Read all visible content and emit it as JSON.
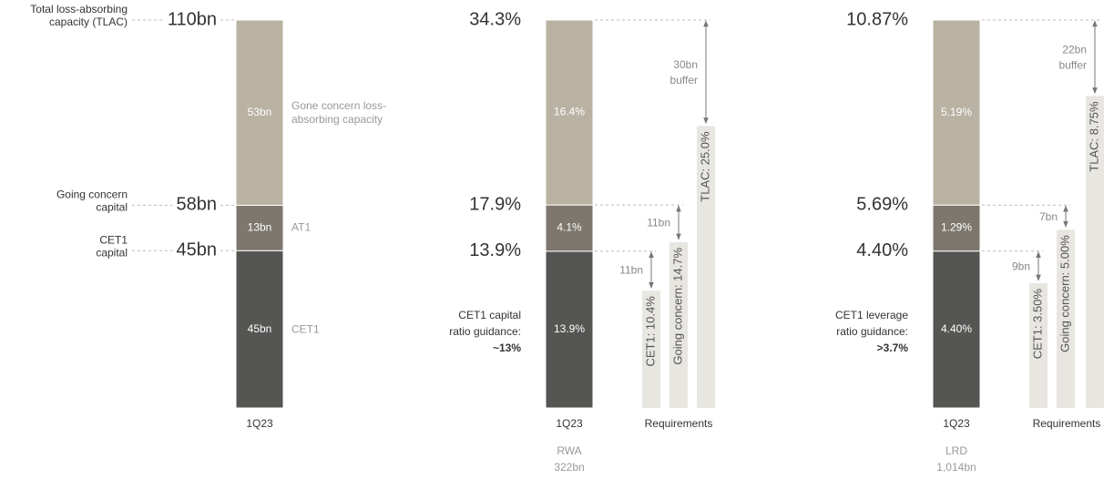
{
  "chart_data": [
    {
      "type": "stacked_bar",
      "categories": [
        "1Q23"
      ],
      "series": [
        {
          "name": "CET1",
          "color": "#555553",
          "values": [
            45
          ],
          "value_labels": [
            "45bn"
          ]
        },
        {
          "name": "AT1",
          "color": "#7d776d",
          "values": [
            13
          ],
          "value_labels": [
            "13bn"
          ]
        },
        {
          "name": "Gone concern loss-absorbing capacity",
          "color": "#b9b2a2",
          "values": [
            53
          ],
          "value_labels": [
            "53bn"
          ]
        }
      ],
      "levels": [
        {
          "text": "45bn",
          "label": [
            "CET1",
            "capital"
          ]
        },
        {
          "text": "58bn",
          "label": [
            "Going concern",
            "capital"
          ]
        },
        {
          "text": "110bn",
          "label": [
            "Total loss-absorbing",
            "capacity (TLAC)"
          ]
        }
      ]
    },
    {
      "type": "stacked_bar",
      "categories": [
        "1Q23"
      ],
      "series": [
        {
          "color": "#555553",
          "values": [
            13.9
          ],
          "value_labels": [
            "13.9%"
          ]
        },
        {
          "color": "#7d776d",
          "values": [
            4.1
          ],
          "value_labels": [
            "4.1%"
          ]
        },
        {
          "color": "#b9b2a2",
          "values": [
            16.4
          ],
          "value_labels": [
            "16.4%"
          ]
        }
      ],
      "levels": [
        {
          "text": "13.9%"
        },
        {
          "text": "17.9%"
        },
        {
          "text": "34.3%"
        }
      ],
      "guidance": [
        "CET1 capital",
        "ratio guidance:",
        "~13%"
      ],
      "footer": [
        "RWA",
        "322bn"
      ],
      "requirements": {
        "title": "Requirements",
        "bars": [
          {
            "label": "CET1: 10.4%",
            "value": 10.4,
            "gap": [
              "11bn"
            ]
          },
          {
            "label": "Going concern: 14.7%",
            "value": 14.7,
            "gap": [
              "11bn"
            ]
          },
          {
            "label": "TLAC: 25.0%",
            "value": 25.0,
            "gap": [
              "30bn",
              "buffer"
            ]
          }
        ]
      }
    },
    {
      "type": "stacked_bar",
      "categories": [
        "1Q23"
      ],
      "series": [
        {
          "color": "#555553",
          "values": [
            4.4
          ],
          "value_labels": [
            "4.40%"
          ]
        },
        {
          "color": "#7d776d",
          "values": [
            1.29
          ],
          "value_labels": [
            "1.29%"
          ]
        },
        {
          "color": "#b9b2a2",
          "values": [
            5.19
          ],
          "value_labels": [
            "5.19%"
          ]
        }
      ],
      "levels": [
        {
          "text": "4.40%"
        },
        {
          "text": "5.69%"
        },
        {
          "text": "10.87%"
        }
      ],
      "guidance": [
        "CET1 leverage",
        "ratio guidance:",
        ">3.7%"
      ],
      "footer": [
        "LRD",
        "1,014bn"
      ],
      "requirements": {
        "title": "Requirements",
        "bars": [
          {
            "label": "CET1: 3.50%",
            "value": 3.5,
            "gap": [
              "9bn"
            ]
          },
          {
            "label": "Going concern: 5.00%",
            "value": 5.0,
            "gap": [
              "7bn"
            ]
          },
          {
            "label": "TLAC: 8.75%",
            "value": 8.75,
            "gap": [
              "22bn",
              "buffer"
            ]
          }
        ]
      }
    }
  ]
}
